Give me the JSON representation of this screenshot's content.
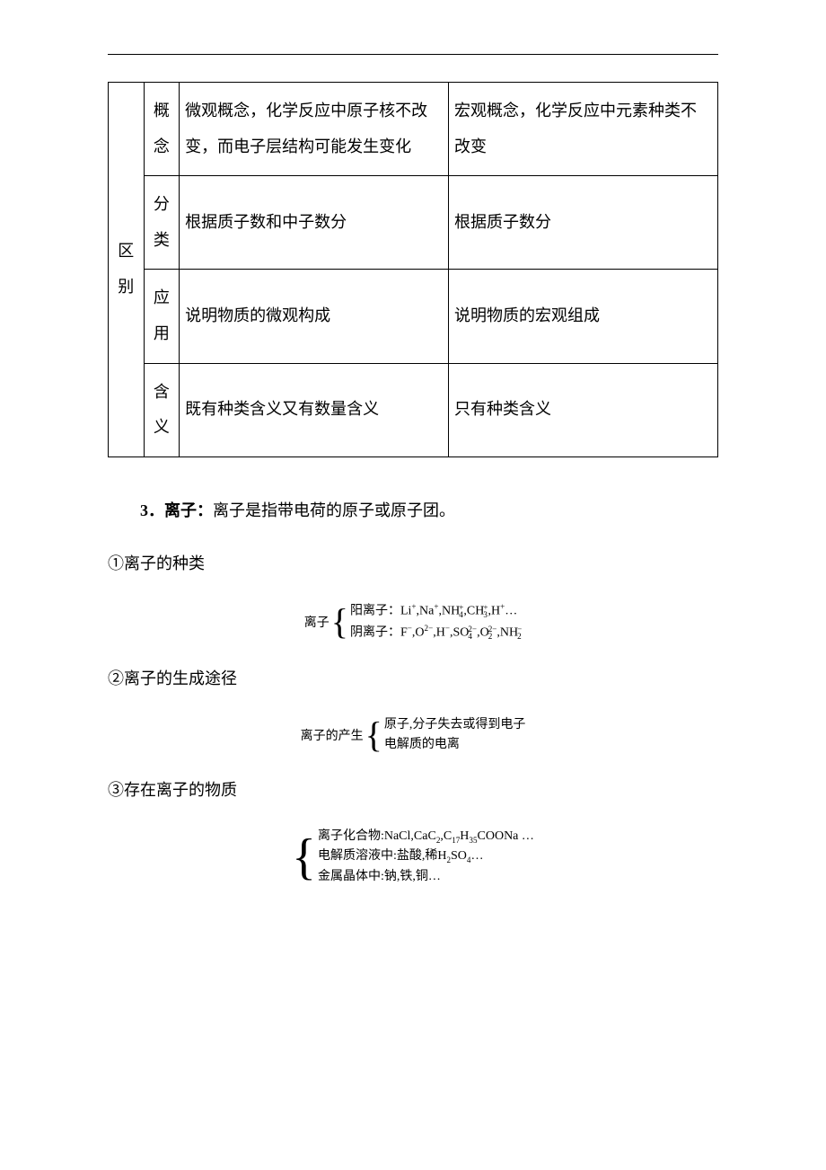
{
  "table": {
    "row_header": "区别",
    "rows": [
      {
        "label": "概念",
        "c1": "微观概念，化学反应中原子核不改变，而电子层结构可能发生变化",
        "c2": "宏观概念，化学反应中元素种类不改变"
      },
      {
        "label": "分类",
        "c1": "根据质子数和中子数分",
        "c2": "根据质子数分"
      },
      {
        "label": "应用",
        "c1": "说明物质的微观构成",
        "c2": "说明物质的宏观组成"
      },
      {
        "label": "含义",
        "c1": "既有种类含义又有数量含义",
        "c2": "只有种类含义"
      }
    ]
  },
  "section3": {
    "num": "3．",
    "title": "离子：",
    "body": "离子是指带电荷的原子或原子团。"
  },
  "sub1": {
    "heading": "①离子的种类",
    "label": "离子",
    "line1_label": "阳离子：",
    "line1_items": "Li⁺,Na⁺,NH₄⁺,CH₃⁺,H⁺…",
    "line2_label": "阴离子：",
    "line2_items": "F⁻,O²⁻,H⁻,SO₄²⁻,O₂²⁻,NH₂⁻"
  },
  "sub2": {
    "heading": "②离子的生成途径",
    "label": "离子的产生",
    "line1": "原子,分子失去或得到电子",
    "line2": "电解质的电离"
  },
  "sub3": {
    "heading": "③存在离子的物质",
    "line1": "离子化合物:NaCl,CaC₂,C₁₇H₃₅COONa …",
    "line2": "电解质溶液中:盐酸,稀H₂SO₄…",
    "line3": "金属晶体中:钠,铁,铜…"
  }
}
